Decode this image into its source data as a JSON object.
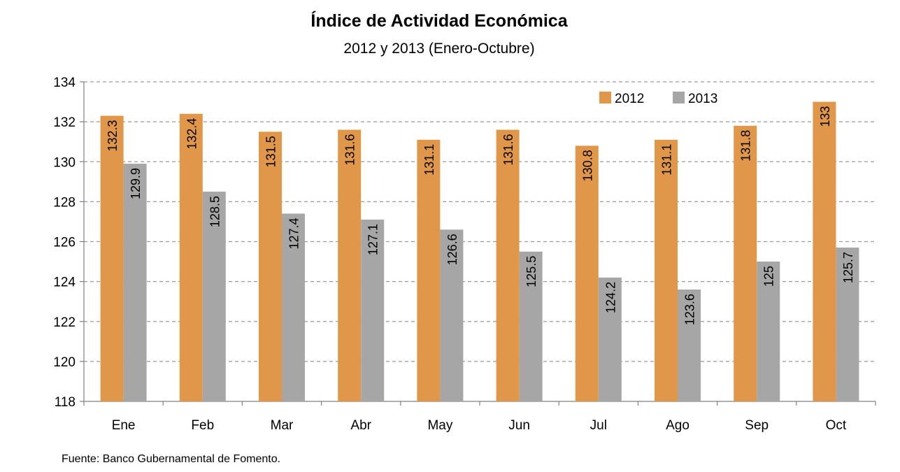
{
  "chart_data": {
    "type": "bar",
    "title": "Índice de Actividad Económica",
    "subtitle": "2012 y 2013 (Enero-Octubre)",
    "xlabel": "",
    "ylabel": "",
    "categories": [
      "Ene",
      "Feb",
      "Mar",
      "Abr",
      "May",
      "Jun",
      "Jul",
      "Ago",
      "Sep",
      "Oct"
    ],
    "series": [
      {
        "name": "2012",
        "color": "#E0974A",
        "values": [
          132.3,
          132.4,
          131.5,
          131.6,
          131.1,
          131.6,
          130.8,
          131.1,
          131.8,
          133
        ]
      },
      {
        "name": "2013",
        "color": "#A6A6A6",
        "values": [
          129.9,
          128.5,
          127.4,
          127.1,
          126.6,
          125.5,
          124.2,
          123.6,
          125,
          125.7
        ]
      }
    ],
    "ylim": [
      118,
      134
    ],
    "yticks": [
      118,
      120,
      122,
      124,
      126,
      128,
      130,
      132,
      134
    ],
    "grid": true,
    "gridline_style": "dashed",
    "legend_position": "top-right",
    "data_labels": "rotated-inside-bars"
  },
  "source_note": "Fuente: Banco Gubernamental de Fomento."
}
